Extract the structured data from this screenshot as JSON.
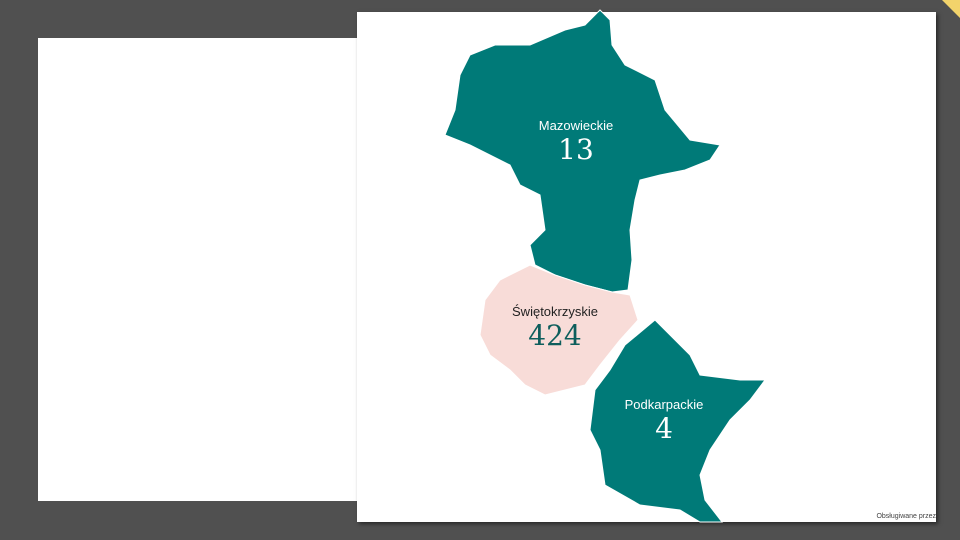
{
  "map": {
    "regions": [
      {
        "name": "Mazowieckie",
        "value": "13",
        "color": "#007a78"
      },
      {
        "name": "Świętokrzyskie",
        "value": "424",
        "color": "#f8dcd8"
      },
      {
        "name": "Podkarpackie",
        "value": "4",
        "color": "#007a78"
      }
    ],
    "credit": "Obsługiwane przez"
  }
}
